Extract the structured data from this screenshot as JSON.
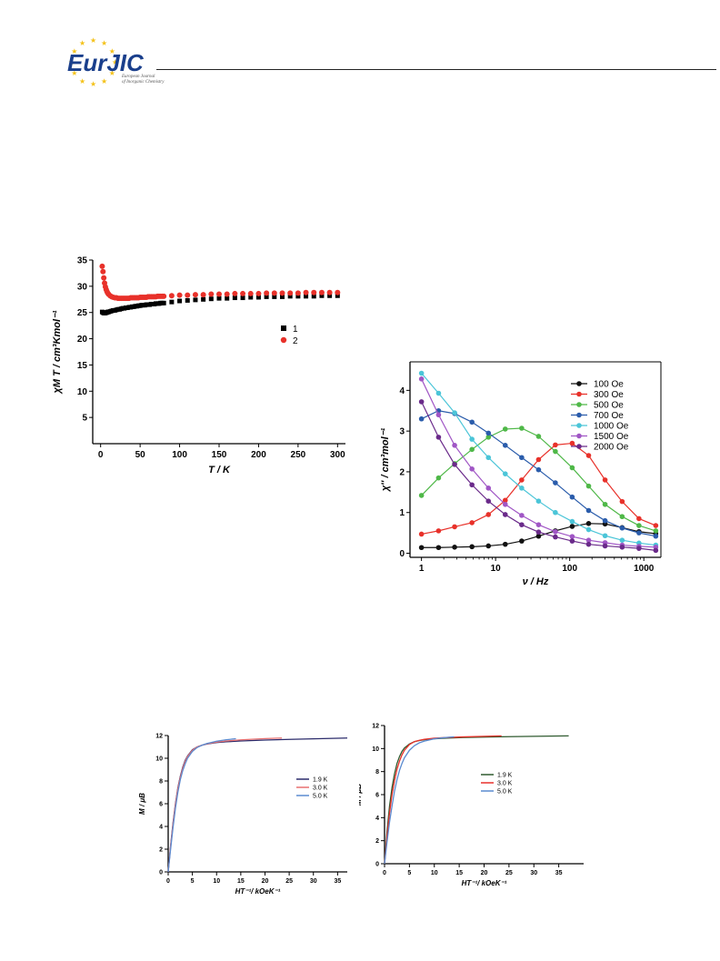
{
  "header": {
    "logo_text": "EurJIC",
    "journal_line1": "European Journal",
    "journal_line2": "of Inorganic Chemistry"
  },
  "chart_data": [
    {
      "id": "chiT",
      "type": "scatter",
      "xlabel": "T / K",
      "ylabel": "χM T / cm³Kmol⁻¹",
      "xlim": [
        -10,
        310
      ],
      "ylim": [
        0,
        35
      ],
      "xticks": [
        0,
        50,
        100,
        150,
        200,
        250,
        300
      ],
      "yticks": [
        5,
        10,
        15,
        20,
        25,
        30,
        35
      ],
      "legend_position": "center-right",
      "series": [
        {
          "name": "1",
          "color": "#000000",
          "marker": "square",
          "x": [
            2,
            3,
            4,
            5,
            6,
            7,
            8,
            9,
            10,
            12,
            14,
            16,
            18,
            20,
            22,
            24,
            26,
            28,
            30,
            32,
            34,
            36,
            38,
            40,
            42,
            44,
            46,
            48,
            50,
            52,
            54,
            56,
            58,
            60,
            62,
            64,
            66,
            68,
            70,
            72,
            74,
            76,
            78,
            80,
            90,
            100,
            110,
            120,
            130,
            140,
            150,
            160,
            170,
            180,
            190,
            200,
            210,
            220,
            230,
            240,
            250,
            260,
            270,
            280,
            290,
            300
          ],
          "y": [
            25.1,
            25.0,
            24.9,
            24.9,
            24.9,
            25.0,
            25.0,
            25.1,
            25.1,
            25.2,
            25.3,
            25.4,
            25.4,
            25.5,
            25.6,
            25.6,
            25.7,
            25.8,
            25.8,
            25.9,
            25.9,
            26.0,
            26.0,
            26.1,
            26.1,
            26.2,
            26.2,
            26.3,
            26.3,
            26.4,
            26.4,
            26.4,
            26.5,
            26.5,
            26.5,
            26.6,
            26.6,
            26.6,
            26.7,
            26.7,
            26.7,
            26.8,
            26.8,
            26.8,
            27.0,
            27.2,
            27.3,
            27.4,
            27.5,
            27.6,
            27.7,
            27.7,
            27.8,
            27.8,
            27.9,
            27.9,
            28.0,
            28.0,
            28.0,
            28.1,
            28.1,
            28.1,
            28.1,
            28.2,
            28.2,
            28.2
          ]
        },
        {
          "name": "2",
          "color": "#e8312a",
          "marker": "circle",
          "x": [
            2,
            3,
            4,
            5,
            6,
            7,
            8,
            9,
            10,
            12,
            14,
            16,
            18,
            20,
            22,
            24,
            26,
            28,
            30,
            32,
            34,
            36,
            38,
            40,
            42,
            44,
            46,
            48,
            50,
            52,
            54,
            56,
            58,
            60,
            62,
            64,
            66,
            68,
            70,
            72,
            74,
            76,
            78,
            80,
            90,
            100,
            110,
            120,
            130,
            140,
            150,
            160,
            170,
            180,
            190,
            200,
            210,
            220,
            230,
            240,
            250,
            260,
            270,
            280,
            290,
            300
          ],
          "y": [
            33.8,
            32.8,
            31.6,
            30.6,
            29.9,
            29.4,
            29.0,
            28.7,
            28.5,
            28.2,
            28.0,
            27.9,
            27.8,
            27.8,
            27.7,
            27.7,
            27.7,
            27.7,
            27.7,
            27.7,
            27.7,
            27.7,
            27.8,
            27.8,
            27.8,
            27.8,
            27.8,
            27.8,
            27.9,
            27.9,
            27.9,
            27.9,
            27.9,
            28.0,
            28.0,
            28.0,
            28.0,
            28.0,
            28.0,
            28.1,
            28.1,
            28.1,
            28.1,
            28.1,
            28.2,
            28.3,
            28.3,
            28.4,
            28.4,
            28.5,
            28.5,
            28.5,
            28.6,
            28.6,
            28.6,
            28.6,
            28.7,
            28.7,
            28.7,
            28.7,
            28.7,
            28.8,
            28.8,
            28.8,
            28.8,
            28.8
          ]
        }
      ]
    },
    {
      "id": "ac",
      "type": "line",
      "xscale": "log",
      "xlabel": "ν / Hz",
      "ylabel": "χ'' / cm³mol⁻¹",
      "xlim": [
        0.7,
        1700
      ],
      "ylim": [
        -0.1,
        4.7
      ],
      "xticks": [
        1,
        10,
        100,
        1000
      ],
      "xtick_labels": [
        "1",
        "10",
        "100",
        "1000"
      ],
      "yticks": [
        0,
        1,
        2,
        3,
        4
      ],
      "legend_position": "top-right",
      "x": [
        1,
        1.7,
        2.8,
        4.8,
        8,
        13.5,
        22.5,
        38,
        64,
        108,
        180,
        300,
        510,
        860,
        1450
      ],
      "series": [
        {
          "name": "100 Oe",
          "color": "#111111",
          "values": [
            0.14,
            0.14,
            0.15,
            0.16,
            0.18,
            0.22,
            0.3,
            0.42,
            0.55,
            0.66,
            0.73,
            0.72,
            0.63,
            0.53,
            0.48
          ]
        },
        {
          "name": "300 Oe",
          "color": "#e8312a",
          "values": [
            0.47,
            0.55,
            0.65,
            0.75,
            0.95,
            1.3,
            1.8,
            2.3,
            2.66,
            2.7,
            2.4,
            1.8,
            1.27,
            0.85,
            0.68
          ]
        },
        {
          "name": "500 Oe",
          "color": "#4fb848",
          "values": [
            1.42,
            1.85,
            2.2,
            2.55,
            2.85,
            3.05,
            3.07,
            2.87,
            2.5,
            2.1,
            1.65,
            1.2,
            0.9,
            0.68,
            0.55
          ]
        },
        {
          "name": "700 Oe",
          "color": "#2a5cab",
          "values": [
            3.3,
            3.5,
            3.43,
            3.22,
            2.95,
            2.65,
            2.35,
            2.05,
            1.73,
            1.38,
            1.05,
            0.8,
            0.62,
            0.5,
            0.42
          ]
        },
        {
          "name": "1000 Oe",
          "color": "#4bc5d8",
          "values": [
            4.42,
            3.93,
            3.45,
            2.8,
            2.35,
            1.95,
            1.6,
            1.28,
            1.0,
            0.78,
            0.58,
            0.43,
            0.32,
            0.25,
            0.2
          ]
        },
        {
          "name": "1500 Oe",
          "color": "#a056c5",
          "values": [
            4.28,
            3.4,
            2.65,
            2.07,
            1.6,
            1.2,
            0.93,
            0.7,
            0.53,
            0.41,
            0.32,
            0.26,
            0.2,
            0.17,
            0.15
          ]
        },
        {
          "name": "2000 Oe",
          "color": "#6a2a8a",
          "values": [
            3.72,
            2.85,
            2.18,
            1.68,
            1.28,
            0.95,
            0.7,
            0.52,
            0.4,
            0.3,
            0.22,
            0.18,
            0.15,
            0.12,
            0.07
          ]
        }
      ]
    },
    {
      "id": "mag1",
      "type": "line",
      "xlabel": "HT⁻¹/ kOeK⁻¹",
      "ylabel": "M / μB",
      "xlim": [
        0,
        37
      ],
      "ylim": [
        0,
        12
      ],
      "xticks": [
        0,
        5,
        10,
        15,
        20,
        25,
        30,
        35
      ],
      "yticks": [
        0,
        2,
        4,
        6,
        8,
        10,
        12
      ],
      "legend_position": "center-right",
      "series": [
        {
          "name": "1.9 K",
          "color": "#2b2b6b",
          "x": [
            0,
            0.5,
            1,
            1.5,
            2,
            2.5,
            3,
            3.5,
            4,
            5,
            6,
            7,
            8,
            10,
            12,
            15,
            20,
            25,
            30,
            37
          ],
          "values": [
            0,
            2.3,
            4.3,
            6.0,
            7.4,
            8.4,
            9.2,
            9.8,
            10.2,
            10.75,
            11.0,
            11.15,
            11.25,
            11.38,
            11.45,
            11.52,
            11.6,
            11.66,
            11.71,
            11.78
          ]
        },
        {
          "name": "3.0 K",
          "color": "#e87070",
          "x": [
            0,
            0.5,
            1,
            1.5,
            2,
            2.5,
            3,
            3.5,
            4,
            5,
            6,
            7,
            8,
            10,
            12,
            15,
            20,
            23.5
          ],
          "values": [
            0,
            2.2,
            4.2,
            5.9,
            7.3,
            8.3,
            9.1,
            9.7,
            10.15,
            10.7,
            11.0,
            11.15,
            11.27,
            11.42,
            11.52,
            11.62,
            11.73,
            11.78
          ]
        },
        {
          "name": "5.0 K",
          "color": "#5b8bd0",
          "x": [
            0,
            0.5,
            1,
            1.5,
            2,
            2.5,
            3,
            3.5,
            4,
            5,
            6,
            7,
            8,
            10,
            12,
            14
          ],
          "values": [
            0,
            2.0,
            3.9,
            5.6,
            7.0,
            8.1,
            8.9,
            9.5,
            10.0,
            10.6,
            10.95,
            11.15,
            11.3,
            11.5,
            11.63,
            11.72
          ]
        }
      ]
    },
    {
      "id": "mag2",
      "type": "line",
      "xlabel": "HT⁻¹/ kOeK⁻¹",
      "ylabel": "M / μB",
      "xlim": [
        0,
        40
      ],
      "ylim": [
        0,
        12
      ],
      "xticks": [
        0,
        5,
        10,
        15,
        20,
        25,
        30,
        35
      ],
      "yticks": [
        0,
        2,
        4,
        6,
        8,
        10,
        12
      ],
      "legend_position": "center-right",
      "series": [
        {
          "name": "1.9 K",
          "color": "#2f5a2f",
          "x": [
            0,
            0.5,
            1,
            1.5,
            2,
            2.5,
            3,
            3.5,
            4,
            5,
            6,
            7,
            8,
            10,
            12,
            15,
            20,
            25,
            30,
            37
          ],
          "values": [
            0,
            2.8,
            5.0,
            6.6,
            7.8,
            8.7,
            9.3,
            9.75,
            10.05,
            10.4,
            10.6,
            10.7,
            10.77,
            10.85,
            10.9,
            10.95,
            11.0,
            11.03,
            11.06,
            11.1
          ]
        },
        {
          "name": "3.0 K",
          "color": "#e8312a",
          "x": [
            0,
            0.5,
            1,
            1.5,
            2,
            2.5,
            3,
            3.5,
            4,
            5,
            6,
            7,
            8,
            10,
            12,
            15,
            20,
            23.5
          ],
          "values": [
            0,
            2.4,
            4.4,
            6.0,
            7.2,
            8.2,
            8.9,
            9.45,
            9.85,
            10.35,
            10.6,
            10.72,
            10.8,
            10.9,
            10.95,
            11.0,
            11.06,
            11.1
          ]
        },
        {
          "name": "5.0 K",
          "color": "#5b8bd0",
          "x": [
            0,
            0.5,
            1,
            1.5,
            2,
            2.5,
            3,
            3.5,
            4,
            5,
            6,
            7,
            8,
            10,
            12,
            14
          ],
          "values": [
            0,
            1.9,
            3.6,
            5.0,
            6.3,
            7.3,
            8.1,
            8.7,
            9.2,
            9.85,
            10.25,
            10.5,
            10.65,
            10.85,
            10.95,
            11.02
          ]
        }
      ]
    }
  ]
}
